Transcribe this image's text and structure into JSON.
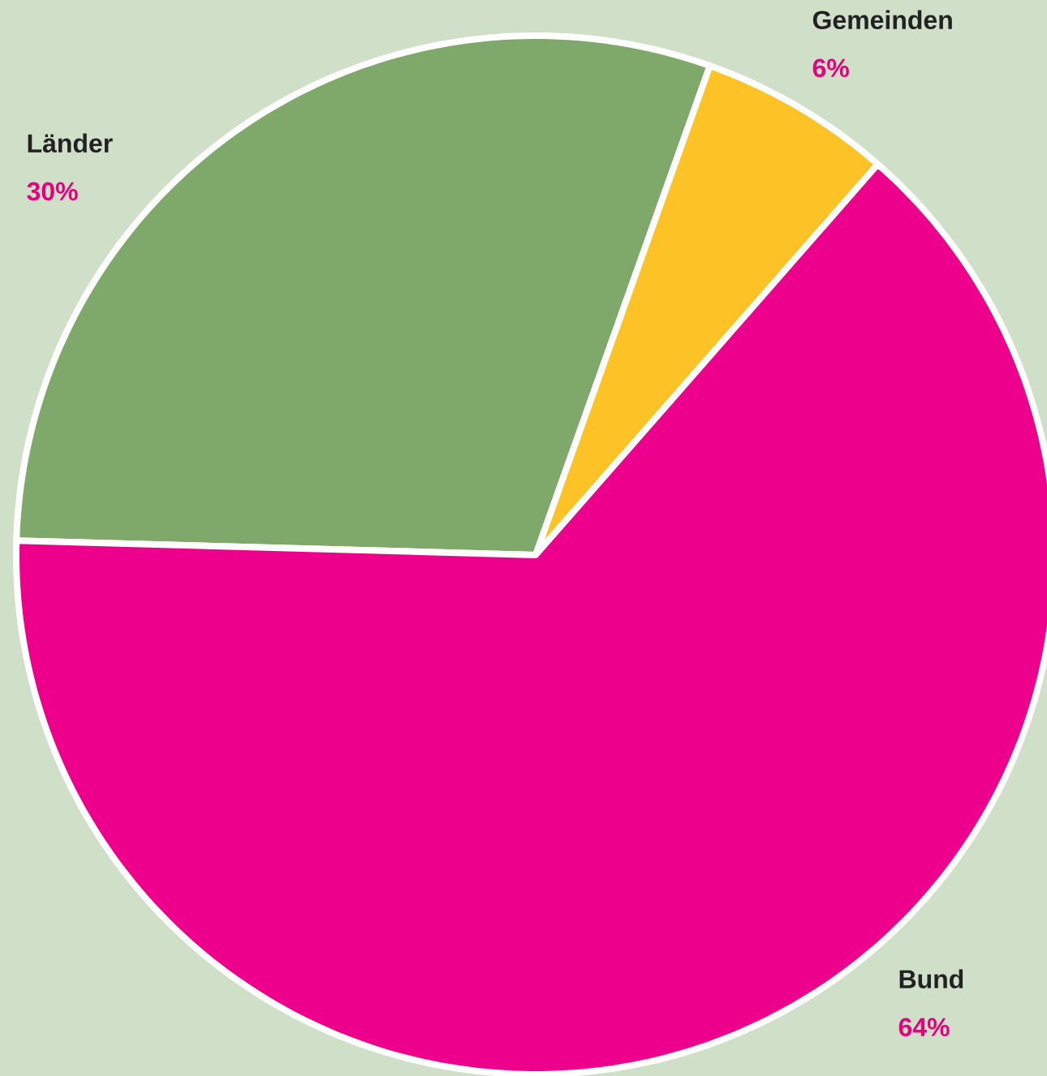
{
  "chart_data": {
    "type": "pie",
    "categories": [
      "Länder",
      "Gemeinden",
      "Bund"
    ],
    "values": [
      30,
      6,
      64
    ],
    "colors": [
      "#7fa86b",
      "#fdc226",
      "#ec008c"
    ],
    "value_labels": [
      "30%",
      "6%",
      "64%"
    ]
  }
}
